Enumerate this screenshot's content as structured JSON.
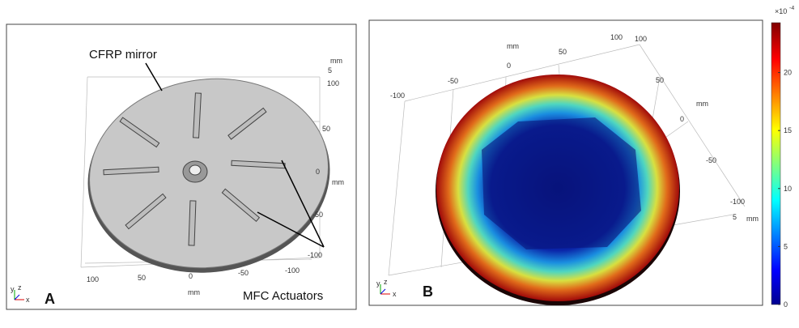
{
  "panel_a": {
    "label": "A",
    "annotations": [
      "CFRP mirror",
      "MFC Actuators"
    ],
    "x_ticks": [
      "100",
      "50",
      "0",
      "-50",
      "-100"
    ],
    "x_unit": "mm",
    "y_ticks": [
      "100",
      "50",
      "0",
      "-50",
      "-100"
    ],
    "y_unit": "mm",
    "z_ticks": [
      "5"
    ],
    "z_unit": "mm",
    "triad": [
      "x",
      "y",
      "z"
    ]
  },
  "panel_b": {
    "label": "B",
    "x_ticks": [
      "-100",
      "-50",
      "0",
      "50",
      "100"
    ],
    "x_unit": "mm",
    "y_ticks": [
      "100",
      "50",
      "0",
      "-50",
      "-100"
    ],
    "y_unit": "mm",
    "z_ticks": [
      "5"
    ],
    "z_unit": "mm",
    "triad": [
      "x",
      "y",
      "z"
    ]
  },
  "colorbar": {
    "multiplier": "×10",
    "exponent": "-4",
    "lim": [
      0,
      24.3
    ],
    "ticks": [
      0,
      5,
      10,
      15,
      20
    ]
  }
}
